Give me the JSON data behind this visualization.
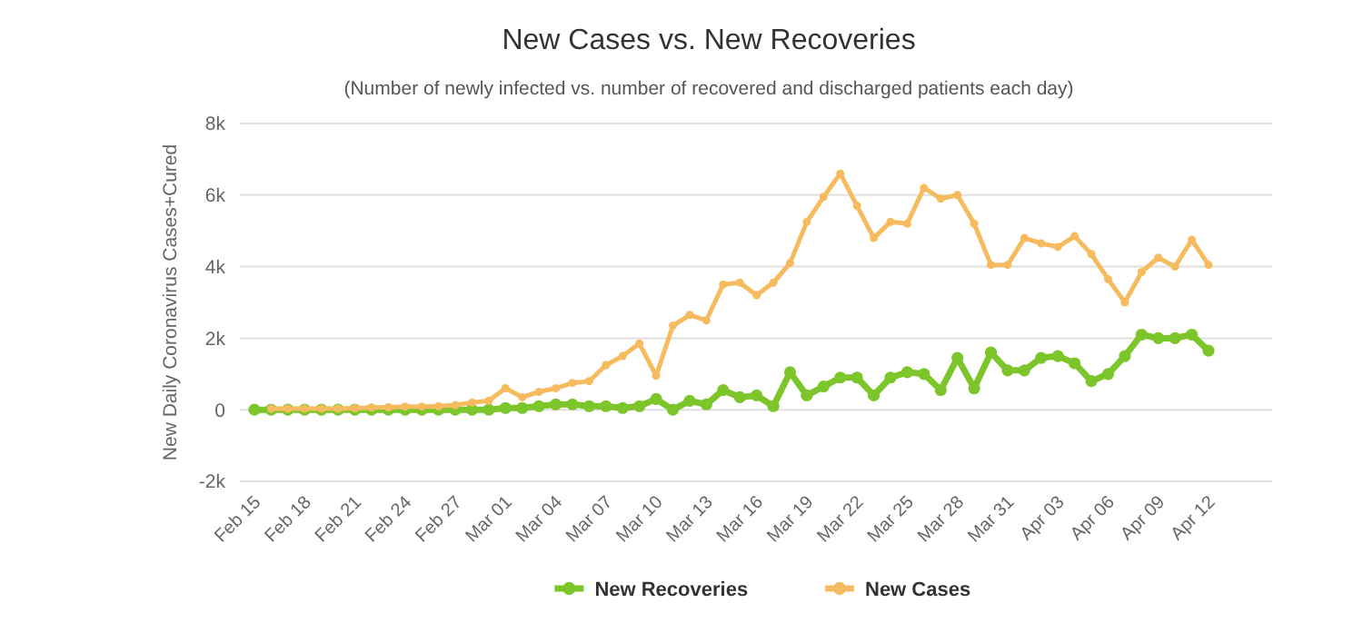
{
  "chart_data": {
    "type": "line",
    "title": "New Cases vs. New Recoveries",
    "subtitle": "(Number of newly infected vs. number of recovered and discharged patients each day)",
    "ylabel": "New Daily Coronavirus Cases+Cured",
    "categories": [
      "Feb 15",
      null,
      null,
      "Feb 18",
      null,
      null,
      "Feb 21",
      null,
      null,
      "Feb 24",
      null,
      null,
      "Feb 27",
      null,
      null,
      "Mar 01",
      null,
      null,
      "Mar 04",
      null,
      null,
      "Mar 07",
      null,
      null,
      "Mar 10",
      null,
      null,
      "Mar 13",
      null,
      null,
      "Mar 16",
      null,
      null,
      "Mar 19",
      null,
      null,
      "Mar 22",
      null,
      null,
      "Mar 25",
      null,
      null,
      "Mar 28",
      null,
      null,
      "Mar 31",
      null,
      null,
      "Apr 03",
      null,
      null,
      "Apr 06",
      null,
      null,
      "Apr 09",
      null,
      null,
      "Apr 12"
    ],
    "series": [
      {
        "name": "New Recoveries",
        "color": "#7cc52b",
        "values": [
          0,
          0,
          0,
          0,
          0,
          0,
          0,
          0,
          0,
          0,
          0,
          0,
          0,
          0,
          0,
          50,
          50,
          100,
          150,
          150,
          100,
          100,
          50,
          100,
          300,
          0,
          250,
          150,
          550,
          350,
          400,
          100,
          1050,
          400,
          650,
          900,
          900,
          400,
          900,
          1050,
          1000,
          550,
          1450,
          600,
          1600,
          1100,
          1100,
          1450,
          1500,
          1300,
          800,
          1000,
          1500,
          2100,
          2000,
          2000,
          2100,
          1650
        ]
      },
      {
        "name": "New Cases",
        "color": "#f7bb5f",
        "values": [
          null,
          30,
          30,
          30,
          30,
          30,
          40,
          60,
          70,
          90,
          90,
          100,
          130,
          200,
          250,
          600,
          350,
          500,
          600,
          750,
          800,
          1250,
          1500,
          1850,
          950,
          2350,
          2650,
          2500,
          3500,
          3550,
          3200,
          3550,
          4100,
          5250,
          5950,
          6600,
          5700,
          4800,
          5250,
          5200,
          6200,
          5900,
          6000,
          5200,
          4050,
          4050,
          4800,
          4650,
          4550,
          4850,
          4350,
          3650,
          3000,
          3850,
          4250,
          4000,
          4750,
          4050
        ]
      }
    ],
    "ylim": [
      -2000,
      8000
    ],
    "yticks": [
      {
        "value": -2000,
        "label": "-2k"
      },
      0,
      {
        "value": 2000,
        "label": "2k"
      },
      {
        "value": 4000,
        "label": "4k"
      },
      {
        "value": 6000,
        "label": "6k"
      },
      {
        "value": 8000,
        "label": "8k"
      }
    ],
    "grid": "y",
    "legend": "bottom",
    "marker": "circle",
    "line_style": "solid"
  }
}
